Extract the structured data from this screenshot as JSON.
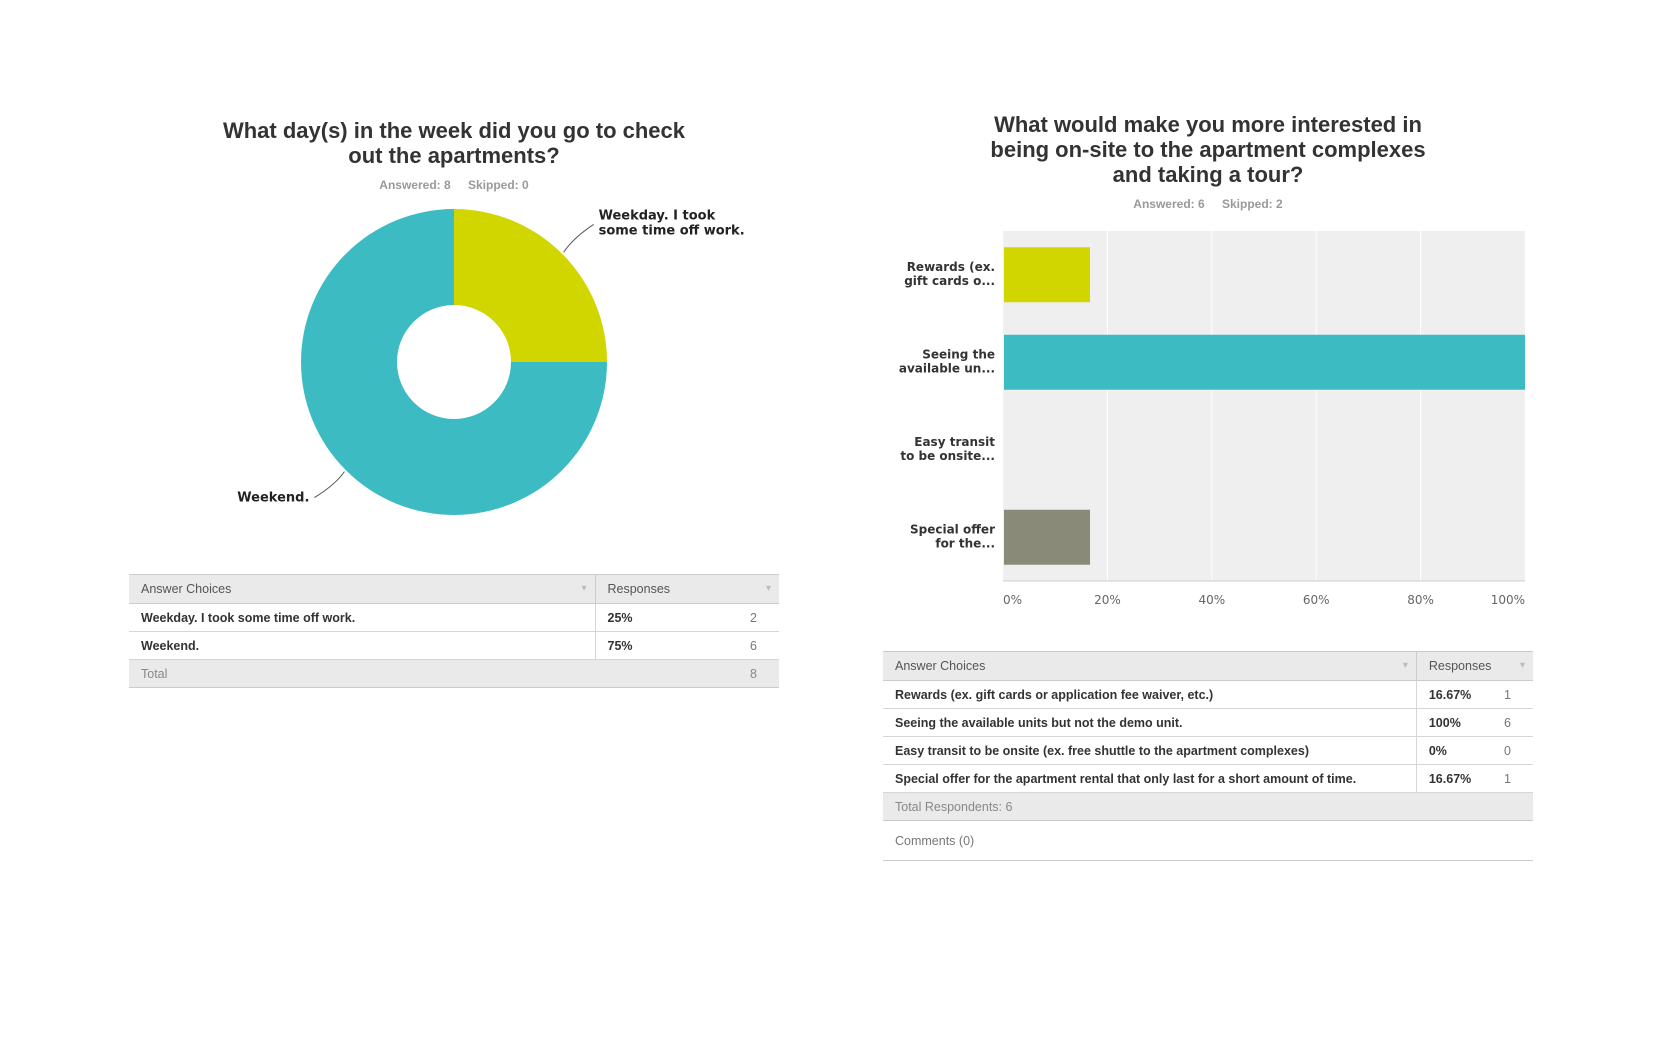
{
  "left": {
    "title": "What day(s) in the week did you go to check out the apartments?",
    "answered": "Answered: 8",
    "skipped": "Skipped: 0",
    "table": {
      "header_choices": "Answer Choices",
      "header_responses": "Responses",
      "rows": [
        {
          "choice": "Weekday. I took some time off work.",
          "pct": "25%",
          "count": "2"
        },
        {
          "choice": "Weekend.",
          "pct": "75%",
          "count": "6"
        }
      ],
      "total_label": "Total",
      "total_count": "8"
    }
  },
  "right": {
    "title": "What would make you more interested in being on-site to the apartment complexes and taking a tour?",
    "answered": "Answered: 6",
    "skipped": "Skipped: 2",
    "table": {
      "header_choices": "Answer Choices",
      "header_responses": "Responses",
      "rows": [
        {
          "choice": "Rewards (ex. gift cards or application fee waiver, etc.)",
          "pct": "16.67%",
          "count": "1"
        },
        {
          "choice": "Seeing the available units but not the demo unit.",
          "pct": "100%",
          "count": "6"
        },
        {
          "choice": "Easy transit to be onsite (ex. free shuttle to the apartment complexes)",
          "pct": "0%",
          "count": "0"
        },
        {
          "choice": "Special offer for the apartment rental that only last for a short amount of time.",
          "pct": "16.67%",
          "count": "1"
        }
      ],
      "total_label": "Total Respondents: 6",
      "comments_label": "Comments (0)"
    }
  },
  "chart_data": [
    {
      "type": "pie",
      "title": "What day(s) in the week did you go to check out the apartments?",
      "categories": [
        "Weekday. I took some time off work.",
        "Weekend."
      ],
      "label_lines": [
        [
          "Weekday. I took",
          "some time off work."
        ],
        [
          "Weekend."
        ]
      ],
      "values": [
        25,
        75
      ],
      "colors": [
        "#d2d600",
        "#3dbbc3"
      ],
      "donut": true
    },
    {
      "type": "bar",
      "orientation": "horizontal",
      "title": "What would make you more interested in being on-site to the apartment complexes and taking a tour?",
      "categories": [
        "Rewards (ex. gift cards o...",
        "Seeing the available un...",
        "Easy transit to be onsite...",
        "Special offer for the..."
      ],
      "category_lines": [
        [
          "Rewards (ex.",
          "gift cards o..."
        ],
        [
          "Seeing the",
          "available un..."
        ],
        [
          "Easy transit",
          "to be onsite..."
        ],
        [
          "Special offer",
          "for the..."
        ]
      ],
      "values": [
        16.67,
        100,
        0,
        16.67
      ],
      "colors": [
        "#d2d600",
        "#3dbbc3",
        "#3dbbc3",
        "#8a8a78"
      ],
      "xlim": [
        0,
        100
      ],
      "xticks": [
        "0%",
        "20%",
        "40%",
        "60%",
        "80%",
        "100%"
      ],
      "grid": true
    }
  ]
}
